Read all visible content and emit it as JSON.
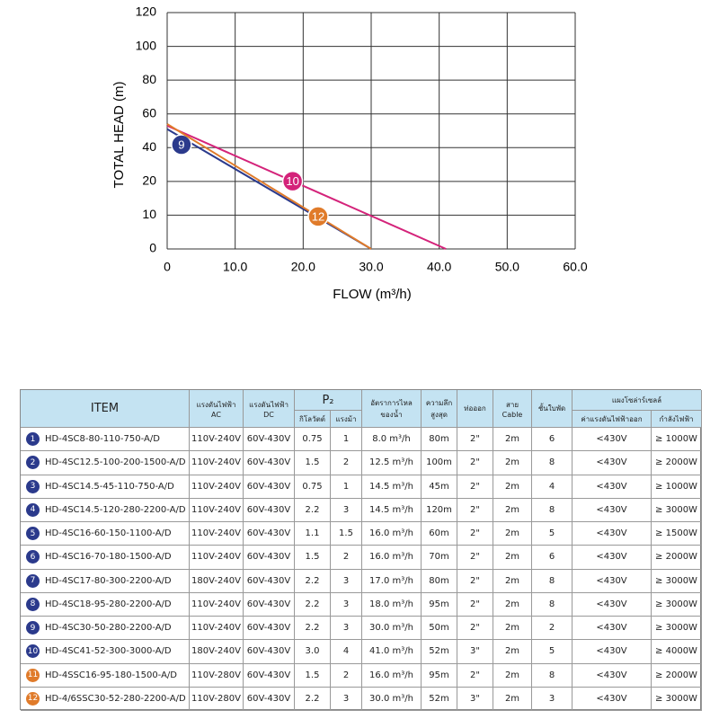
{
  "chart_data": {
    "type": "line",
    "y_label": "TOTAL HEAD (m)",
    "x_label": "FLOW (m³/h)",
    "xlim": [
      0,
      60
    ],
    "xticks": [
      0,
      {
        "value": 10,
        "label": "10.0"
      },
      {
        "value": 20,
        "label": "20.0"
      },
      {
        "value": 30,
        "label": "30.0"
      },
      {
        "value": 40,
        "label": "40.0"
      },
      {
        "value": 50,
        "label": "50.0"
      },
      {
        "value": 60,
        "label": "60.0"
      }
    ],
    "ylim": [
      0,
      120
    ],
    "yticks": [
      0,
      10,
      20,
      40,
      60,
      80,
      100,
      120
    ],
    "grid": true,
    "series": [
      {
        "name": "9",
        "color": "#2b3a8c",
        "x": [
          0,
          30
        ],
        "values": [
          51,
          0
        ]
      },
      {
        "name": "10",
        "color": "#d4237a",
        "x": [
          0,
          41
        ],
        "values": [
          53,
          0
        ]
      },
      {
        "name": "12",
        "color": "#e07b2a",
        "x": [
          0,
          30
        ],
        "values": [
          54,
          0
        ]
      }
    ]
  },
  "table": {
    "header": {
      "item": "ITEM",
      "ac": [
        "แรงดันไฟฟ้า",
        "AC"
      ],
      "dc": [
        "แรงดันไฟฟ้า",
        "DC"
      ],
      "p2": "P₂",
      "kw": "กิโลวัตต์",
      "hp": "แรงม้า",
      "flow": [
        "อัตราการไหล",
        "ของน้ำ"
      ],
      "depth": [
        "ความลึก",
        "สูงสุด"
      ],
      "pipe": "ท่อออก",
      "cable": [
        "สาย",
        "Cable"
      ],
      "stages": "ชั้นใบพัด",
      "solar": "แผงโซล่าร์เซลล์",
      "solar_v": "ค่าแรงดันไฟฟ้าออก",
      "solar_w": "กำลังไฟฟ้า"
    },
    "rows": [
      {
        "no": "1",
        "color": "#2b3a8c",
        "cells": [
          "HD-4SC8-80-110-750-A/D",
          "110V-240V",
          "60V-430V",
          "0.75",
          "1",
          "8.0  m³/h",
          "80m",
          "2\"",
          "2m",
          "6",
          "<430V",
          "≥ 1000W"
        ]
      },
      {
        "no": "2",
        "color": "#2b3a8c",
        "cells": [
          "HD-4SC12.5-100-200-1500-A/D",
          "110V-240V",
          "60V-430V",
          "1.5",
          "2",
          "12.5 m³/h",
          "100m",
          "2\"",
          "2m",
          "8",
          "<430V",
          "≥ 2000W"
        ]
      },
      {
        "no": "3",
        "color": "#2b3a8c",
        "cells": [
          "HD-4SC14.5-45-110-750-A/D",
          "110V-240V",
          "60V-430V",
          "0.75",
          "1",
          "14.5 m³/h",
          "45m",
          "2\"",
          "2m",
          "4",
          "<430V",
          "≥ 1000W"
        ]
      },
      {
        "no": "4",
        "color": "#2b3a8c",
        "cells": [
          "HD-4SC14.5-120-280-2200-A/D",
          "110V-240V",
          "60V-430V",
          "2.2",
          "3",
          "14.5 m³/h",
          "120m",
          "2\"",
          "2m",
          "8",
          "<430V",
          "≥ 3000W"
        ]
      },
      {
        "no": "5",
        "color": "#2b3a8c",
        "cells": [
          "HD-4SC16-60-150-1100-A/D",
          "110V-240V",
          "60V-430V",
          "1.1",
          "1.5",
          "16.0 m³/h",
          "60m",
          "2\"",
          "2m",
          "5",
          "<430V",
          "≥ 1500W"
        ]
      },
      {
        "no": "6",
        "color": "#2b3a8c",
        "cells": [
          "HD-4SC16-70-180-1500-A/D",
          "110V-240V",
          "60V-430V",
          "1.5",
          "2",
          "16.0 m³/h",
          "70m",
          "2\"",
          "2m",
          "6",
          "<430V",
          "≥ 2000W"
        ]
      },
      {
        "no": "7",
        "color": "#2b3a8c",
        "cells": [
          "HD-4SC17-80-300-2200-A/D",
          "180V-240V",
          "60V-430V",
          "2.2",
          "3",
          "17.0 m³/h",
          "80m",
          "2\"",
          "2m",
          "8",
          "<430V",
          "≥ 3000W"
        ]
      },
      {
        "no": "8",
        "color": "#2b3a8c",
        "cells": [
          "HD-4SC18-95-280-2200-A/D",
          "110V-240V",
          "60V-430V",
          "2.2",
          "3",
          "18.0 m³/h",
          "95m",
          "2\"",
          "2m",
          "8",
          "<430V",
          "≥ 3000W"
        ]
      },
      {
        "no": "9",
        "color": "#2b3a8c",
        "cells": [
          "HD-4SC30-50-280-2200-A/D",
          "110V-240V",
          "60V-430V",
          "2.2",
          "3",
          "30.0 m³/h",
          "50m",
          "2\"",
          "2m",
          "2",
          "<430V",
          "≥ 3000W"
        ]
      },
      {
        "no": "10",
        "color": "#2b3a8c",
        "cells": [
          "HD-4SC41-52-300-3000-A/D",
          "180V-240V",
          "60V-430V",
          "3.0",
          "4",
          "41.0 m³/h",
          "52m",
          "3\"",
          "2m",
          "5",
          "<430V",
          "≥ 4000W"
        ]
      },
      {
        "no": "11",
        "color": "#e07b2a",
        "cells": [
          "HD-4SSC16-95-180-1500-A/D",
          "110V-280V",
          "60V-430V",
          "1.5",
          "2",
          "16.0 m³/h",
          "95m",
          "2\"",
          "2m",
          "8",
          "<430V",
          "≥ 2000W"
        ]
      },
      {
        "no": "12",
        "color": "#e07b2a",
        "cells": [
          "HD-4/6SSC30-52-280-2200-A/D",
          "110V-280V",
          "60V-430V",
          "2.2",
          "3",
          "30.0 m³/h",
          "52m",
          "3\"",
          "2m",
          "3",
          "<430V",
          "≥ 3000W"
        ]
      }
    ]
  }
}
